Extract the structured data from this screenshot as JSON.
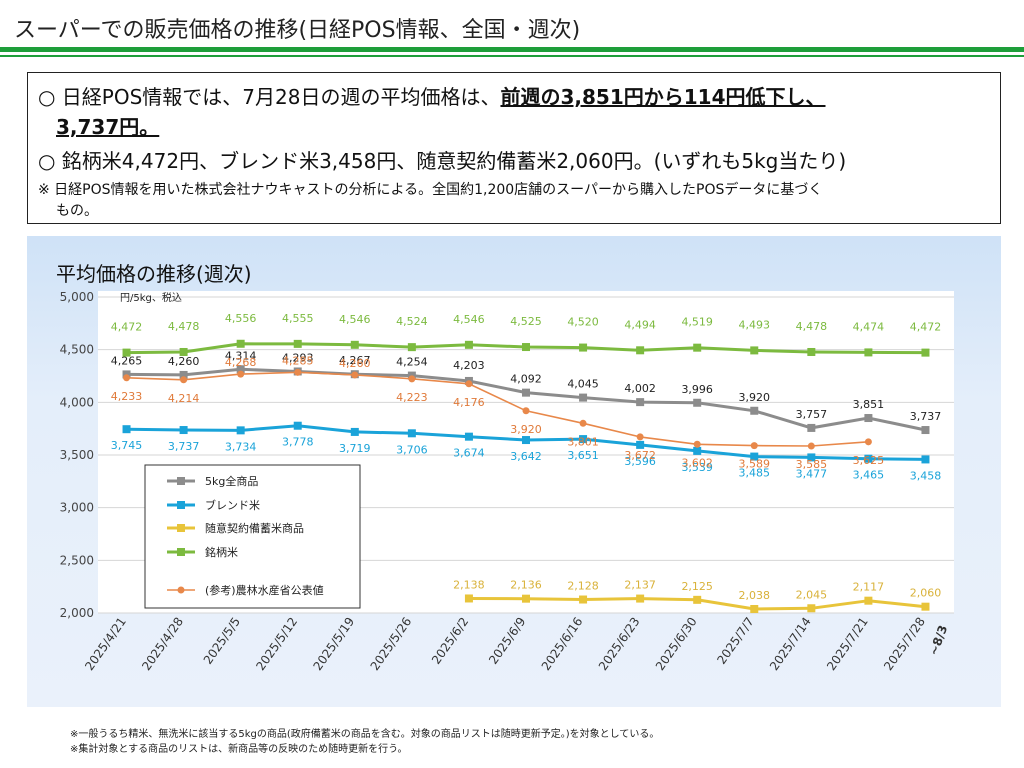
{
  "header": {
    "title": "スーパーでの販売価格の推移(日経POS情報、全国・週次)"
  },
  "summary": {
    "line1_pre": "○  日経POS情報では、7月28日の週の平均価格は、",
    "line1_bold": "前週の3,851円から114円低下し、",
    "line1_cont": "3,737円。",
    "line2": "○  銘柄米4,472円、ブレンド米3,458円、随意契約備蓄米2,060円。(いずれも5kg当たり)",
    "line3": "※  日経POS情報を用いた株式会社ナウキャストの分析による。全国約1,200店舗のスーパーから購入したPOSデータに基づく",
    "line4": "もの。"
  },
  "panel": {
    "title": "平均価格の推移(週次)"
  },
  "footnotes": [
    "※一般うるち精米、無洗米に該当する5kgの商品(政府備蓄米の商品を含む。対象の商品リストは随時更新予定。)を対象としている。",
    "※集計対象とする商品のリストは、新商品等の反映のため随時更新を行う。"
  ],
  "chart_data": {
    "type": "line",
    "ylabel": "円/5kg、税込",
    "ylim": [
      2000,
      5000
    ],
    "yticks": [
      2000,
      2500,
      3000,
      3500,
      4000,
      4500,
      5000
    ],
    "ytick_labels": [
      "2,000",
      "2,500",
      "3,000",
      "3,500",
      "4,000",
      "4,500",
      "5,000"
    ],
    "grid": true,
    "legend_position": "bottom-left",
    "categories": [
      "2025/4/21",
      "2025/4/28",
      "2025/5/5",
      "2025/5/12",
      "2025/5/19",
      "2025/5/26",
      "2025/6/2",
      "2025/6/9",
      "2025/6/16",
      "2025/6/23",
      "2025/6/30",
      "2025/7/7",
      "2025/7/14",
      "2025/7/21",
      "2025/7/28"
    ],
    "category_suffix": "~8/3",
    "series": [
      {
        "name": "5kg全商品",
        "color": "#8c8c8c",
        "label_color": "#222222",
        "marker": "square",
        "values": [
          4265,
          4260,
          4314,
          4293,
          4267,
          4254,
          4203,
          4092,
          4045,
          4002,
          3996,
          3920,
          3757,
          3851,
          3737
        ],
        "labels": [
          "4,265",
          "4,260",
          "4,314",
          "4,293",
          "4,267",
          "4,254",
          "4,203",
          "4,092",
          "4,045",
          "4,002",
          "3,996",
          "3,920",
          "3,757",
          "3,851",
          "3,737"
        ]
      },
      {
        "name": "ブレンド米",
        "color": "#1aa3d9",
        "label_color": "#1aa3d9",
        "marker": "square",
        "values": [
          3745,
          3737,
          3734,
          3778,
          3719,
          3706,
          3674,
          3642,
          3651,
          3596,
          3539,
          3485,
          3477,
          3465,
          3458
        ],
        "labels": [
          "3,745",
          "3,737",
          "3,734",
          "3,778",
          "3,719",
          "3,706",
          "3,674",
          "3,642",
          "3,651",
          "3,596",
          "3,539",
          "3,485",
          "3,477",
          "3,465",
          "3,458"
        ]
      },
      {
        "name": "随意契約備蓄米商品",
        "color": "#e8c43a",
        "label_color": "#d9b23a",
        "marker": "square",
        "values": [
          null,
          null,
          null,
          null,
          null,
          null,
          2138,
          2136,
          2128,
          2137,
          2125,
          2038,
          2045,
          2117,
          2060
        ],
        "labels": [
          null,
          null,
          null,
          null,
          null,
          null,
          "2,138",
          "2,136",
          "2,128",
          "2,137",
          "2,125",
          "2,038",
          "2,045",
          "2,117",
          "2,060"
        ]
      },
      {
        "name": "銘柄米",
        "color": "#7cba3f",
        "label_color": "#7cba3f",
        "marker": "square",
        "values": [
          4472,
          4478,
          4556,
          4555,
          4546,
          4524,
          4546,
          4525,
          4520,
          4494,
          4519,
          4493,
          4478,
          4474,
          4472
        ],
        "labels": [
          "4,472",
          "4,478",
          "4,556",
          "4,555",
          "4,546",
          "4,524",
          "4,546",
          "4,525",
          "4,520",
          "4,494",
          "4,519",
          "4,493",
          "4,478",
          "4,474",
          "4,472"
        ]
      },
      {
        "name": "(参考)農林水産省公表値",
        "color": "#e8884a",
        "label_color": "#e07a3a",
        "marker": "circle",
        "values": [
          4233,
          4214,
          4268,
          4285,
          4260,
          4223,
          4176,
          3920,
          3801,
          3672,
          3602,
          3589,
          3585,
          3625,
          null
        ],
        "labels": [
          "4,233",
          "4,214",
          "4,268",
          "4,285",
          "4,260",
          "4,223",
          "4,176",
          "3,920",
          "3,801",
          "3,672",
          "3,602",
          "3,589",
          "3,585",
          "3,625",
          null
        ]
      }
    ]
  }
}
